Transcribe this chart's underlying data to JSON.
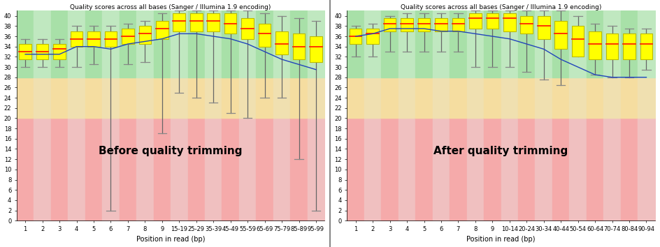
{
  "title": "Quality scores across all bases (Sanger / Illumina 1.9 encoding)",
  "xlabel": "Position in read (bp)",
  "ylim": [
    0,
    41
  ],
  "yticks": [
    0,
    2,
    4,
    6,
    8,
    10,
    12,
    14,
    16,
    18,
    20,
    22,
    24,
    26,
    28,
    30,
    32,
    34,
    36,
    38,
    40
  ],
  "panel1_label": "Before quality trimming",
  "panel2_label": "After quality trimming",
  "panel1_xtick_labels": [
    "1",
    "2",
    "3",
    "4",
    "5",
    "6",
    "7",
    "8",
    "9",
    "15-19",
    "25-29",
    "35-39",
    "45-49",
    "55-59",
    "65-69",
    "75-79",
    "85-89",
    "95-99"
  ],
  "panel2_xtick_labels": [
    "1",
    "2",
    "3",
    "4",
    "5",
    "6",
    "7",
    "8",
    "9",
    "10-14",
    "20-24",
    "30-34",
    "40-44",
    "50-54",
    "60-64",
    "70-74",
    "80-84",
    "90-94"
  ],
  "bg_red_max": 20,
  "bg_orange_max": 28,
  "panel1_boxes": [
    {
      "x": 1,
      "q1": 31.5,
      "med": 33.0,
      "q3": 34.5,
      "whislo": 30.0,
      "whishi": 35.5
    },
    {
      "x": 2,
      "q1": 31.5,
      "med": 33.0,
      "q3": 34.5,
      "whislo": 30.0,
      "whishi": 35.5
    },
    {
      "x": 3,
      "q1": 31.5,
      "med": 33.5,
      "q3": 34.5,
      "whislo": 30.0,
      "whishi": 35.5
    },
    {
      "x": 4,
      "q1": 34.0,
      "med": 35.5,
      "q3": 37.0,
      "whislo": 30.0,
      "whishi": 38.0
    },
    {
      "x": 5,
      "q1": 34.0,
      "med": 35.5,
      "q3": 37.0,
      "whislo": 30.5,
      "whishi": 38.0
    },
    {
      "x": 6,
      "q1": 34.0,
      "med": 35.5,
      "q3": 37.0,
      "whislo": 2.0,
      "whishi": 38.0
    },
    {
      "x": 7,
      "q1": 34.5,
      "med": 36.0,
      "q3": 37.5,
      "whislo": 30.5,
      "whishi": 38.5
    },
    {
      "x": 8,
      "q1": 34.5,
      "med": 36.5,
      "q3": 38.0,
      "whislo": 31.0,
      "whishi": 39.0
    },
    {
      "x": 9,
      "q1": 35.5,
      "med": 37.5,
      "q3": 39.0,
      "whislo": 17.0,
      "whishi": 40.5
    },
    {
      "x": 10,
      "q1": 37.0,
      "med": 39.0,
      "q3": 40.5,
      "whislo": 25.0,
      "whishi": 41.0
    },
    {
      "x": 11,
      "q1": 37.0,
      "med": 39.0,
      "q3": 40.5,
      "whislo": 24.0,
      "whishi": 41.0
    },
    {
      "x": 12,
      "q1": 37.0,
      "med": 39.0,
      "q3": 40.5,
      "whislo": 23.0,
      "whishi": 41.0
    },
    {
      "x": 13,
      "q1": 36.5,
      "med": 38.5,
      "q3": 40.5,
      "whislo": 21.0,
      "whishi": 41.0
    },
    {
      "x": 14,
      "q1": 35.5,
      "med": 37.5,
      "q3": 39.5,
      "whislo": 20.0,
      "whishi": 41.0
    },
    {
      "x": 15,
      "q1": 34.0,
      "med": 36.5,
      "q3": 38.5,
      "whislo": 24.0,
      "whishi": 40.5
    },
    {
      "x": 16,
      "q1": 32.5,
      "med": 34.5,
      "q3": 37.0,
      "whislo": 24.0,
      "whishi": 40.0
    },
    {
      "x": 17,
      "q1": 31.5,
      "med": 34.0,
      "q3": 36.5,
      "whislo": 12.0,
      "whishi": 39.5
    },
    {
      "x": 18,
      "q1": 31.0,
      "med": 34.0,
      "q3": 36.0,
      "whislo": 2.0,
      "whishi": 39.0
    }
  ],
  "panel1_mean_line": [
    32.5,
    32.5,
    32.5,
    34.0,
    34.0,
    33.5,
    34.5,
    35.0,
    35.5,
    36.5,
    36.5,
    36.0,
    35.5,
    34.5,
    33.0,
    31.5,
    30.5,
    29.5
  ],
  "panel2_boxes": [
    {
      "x": 1,
      "q1": 34.5,
      "med": 36.0,
      "q3": 37.5,
      "whislo": 32.0,
      "whishi": 38.0
    },
    {
      "x": 2,
      "q1": 34.5,
      "med": 36.5,
      "q3": 37.5,
      "whislo": 32.0,
      "whishi": 38.5
    },
    {
      "x": 3,
      "q1": 37.0,
      "med": 38.5,
      "q3": 39.5,
      "whislo": 33.0,
      "whishi": 40.0
    },
    {
      "x": 4,
      "q1": 37.0,
      "med": 38.5,
      "q3": 39.5,
      "whislo": 33.0,
      "whishi": 40.5
    },
    {
      "x": 5,
      "q1": 37.0,
      "med": 38.5,
      "q3": 39.5,
      "whislo": 33.0,
      "whishi": 40.5
    },
    {
      "x": 6,
      "q1": 37.0,
      "med": 38.5,
      "q3": 39.5,
      "whislo": 33.0,
      "whishi": 40.5
    },
    {
      "x": 7,
      "q1": 37.0,
      "med": 38.5,
      "q3": 39.5,
      "whislo": 33.0,
      "whishi": 40.5
    },
    {
      "x": 8,
      "q1": 37.5,
      "med": 39.5,
      "q3": 40.5,
      "whislo": 30.0,
      "whishi": 41.0
    },
    {
      "x": 9,
      "q1": 37.5,
      "med": 39.5,
      "q3": 40.5,
      "whislo": 30.0,
      "whishi": 41.0
    },
    {
      "x": 10,
      "q1": 37.0,
      "med": 39.5,
      "q3": 40.5,
      "whislo": 30.0,
      "whishi": 41.0
    },
    {
      "x": 11,
      "q1": 36.5,
      "med": 38.5,
      "q3": 40.0,
      "whislo": 29.0,
      "whishi": 41.0
    },
    {
      "x": 12,
      "q1": 35.5,
      "med": 38.0,
      "q3": 40.0,
      "whislo": 27.5,
      "whishi": 41.0
    },
    {
      "x": 13,
      "q1": 33.5,
      "med": 36.5,
      "q3": 39.0,
      "whislo": 26.5,
      "whishi": 41.0
    },
    {
      "x": 14,
      "q1": 32.0,
      "med": 35.5,
      "q3": 38.0,
      "whislo": 33.0,
      "whishi": 40.0
    },
    {
      "x": 15,
      "q1": 31.5,
      "med": 34.5,
      "q3": 37.0,
      "whislo": 28.5,
      "whishi": 38.5
    },
    {
      "x": 16,
      "q1": 31.5,
      "med": 34.5,
      "q3": 36.5,
      "whislo": 28.0,
      "whishi": 38.0
    },
    {
      "x": 17,
      "q1": 31.5,
      "med": 34.5,
      "q3": 36.5,
      "whislo": 28.0,
      "whishi": 37.5
    },
    {
      "x": 18,
      "q1": 31.5,
      "med": 34.5,
      "q3": 36.5,
      "whislo": 29.5,
      "whishi": 37.5
    }
  ],
  "panel2_mean_line": [
    36.0,
    36.5,
    37.5,
    37.5,
    37.5,
    37.0,
    37.0,
    36.5,
    36.0,
    35.5,
    34.5,
    33.5,
    31.5,
    30.0,
    28.5,
    28.0,
    28.0,
    28.0
  ],
  "box_face_color": "#ffff00",
  "box_edge_color": "#bbbb00",
  "median_color": "#ff2200",
  "mean_line_color": "#2244bb",
  "whisker_color": "#666666",
  "cap_color": "#888888",
  "bg_red_color": "#f5aaaa",
  "bg_red_alt": "#f0c0c0",
  "bg_orange_color": "#f5dda0",
  "bg_orange_alt": "#f0e0b0",
  "bg_green_color": "#a8e0a8",
  "bg_green_alt": "#c0e8c0",
  "label_fontsize": 11,
  "title_fontsize": 6.5,
  "tick_fontsize": 6,
  "xlabel_fontsize": 7
}
